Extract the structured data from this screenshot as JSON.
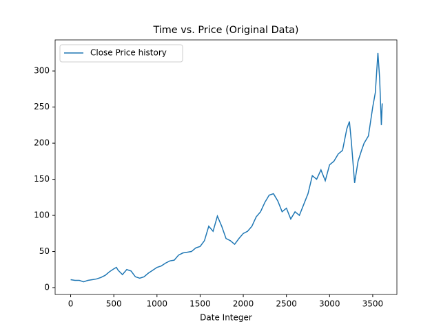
{
  "chart_data": {
    "type": "line",
    "title": "Time vs. Price (Original Data)",
    "x_label": "Date Integer",
    "x": [
      0,
      50,
      100,
      150,
      200,
      250,
      300,
      350,
      400,
      450,
      500,
      530,
      550,
      600,
      650,
      700,
      750,
      800,
      850,
      900,
      950,
      1000,
      1050,
      1100,
      1150,
      1200,
      1250,
      1300,
      1350,
      1400,
      1450,
      1500,
      1550,
      1600,
      1650,
      1700,
      1750,
      1800,
      1850,
      1900,
      1950,
      2000,
      2050,
      2100,
      2150,
      2200,
      2250,
      2300,
      2350,
      2400,
      2450,
      2500,
      2550,
      2600,
      2650,
      2700,
      2750,
      2800,
      2850,
      2900,
      2950,
      3000,
      3050,
      3100,
      3150,
      3200,
      3230,
      3250,
      3290,
      3330,
      3370,
      3400,
      3450,
      3500,
      3530,
      3560,
      3580,
      3600,
      3610
    ],
    "series": [
      {
        "name": "Close Price history",
        "color": "#1f77b4",
        "values": [
          11,
          10,
          10,
          8,
          10,
          11,
          12,
          14,
          17,
          22,
          26,
          28,
          24,
          18,
          25,
          23,
          15,
          13,
          15,
          20,
          24,
          28,
          30,
          34,
          37,
          38,
          45,
          48,
          49,
          50,
          55,
          57,
          65,
          85,
          78,
          99,
          85,
          68,
          65,
          60,
          68,
          75,
          78,
          85,
          98,
          105,
          118,
          128,
          130,
          120,
          105,
          110,
          95,
          105,
          100,
          115,
          130,
          155,
          150,
          163,
          148,
          170,
          175,
          185,
          190,
          220,
          230,
          205,
          145,
          175,
          190,
          200,
          210,
          250,
          270,
          325,
          290,
          225,
          255
        ]
      }
    ],
    "xlim": [
      -180,
      3780
    ],
    "ylim": [
      -9.5,
      343
    ],
    "xticks": [
      0,
      500,
      1000,
      1500,
      2000,
      2500,
      3000,
      3500
    ],
    "yticks": [
      0,
      50,
      100,
      150,
      200,
      250,
      300
    ],
    "legend": "upper left"
  }
}
